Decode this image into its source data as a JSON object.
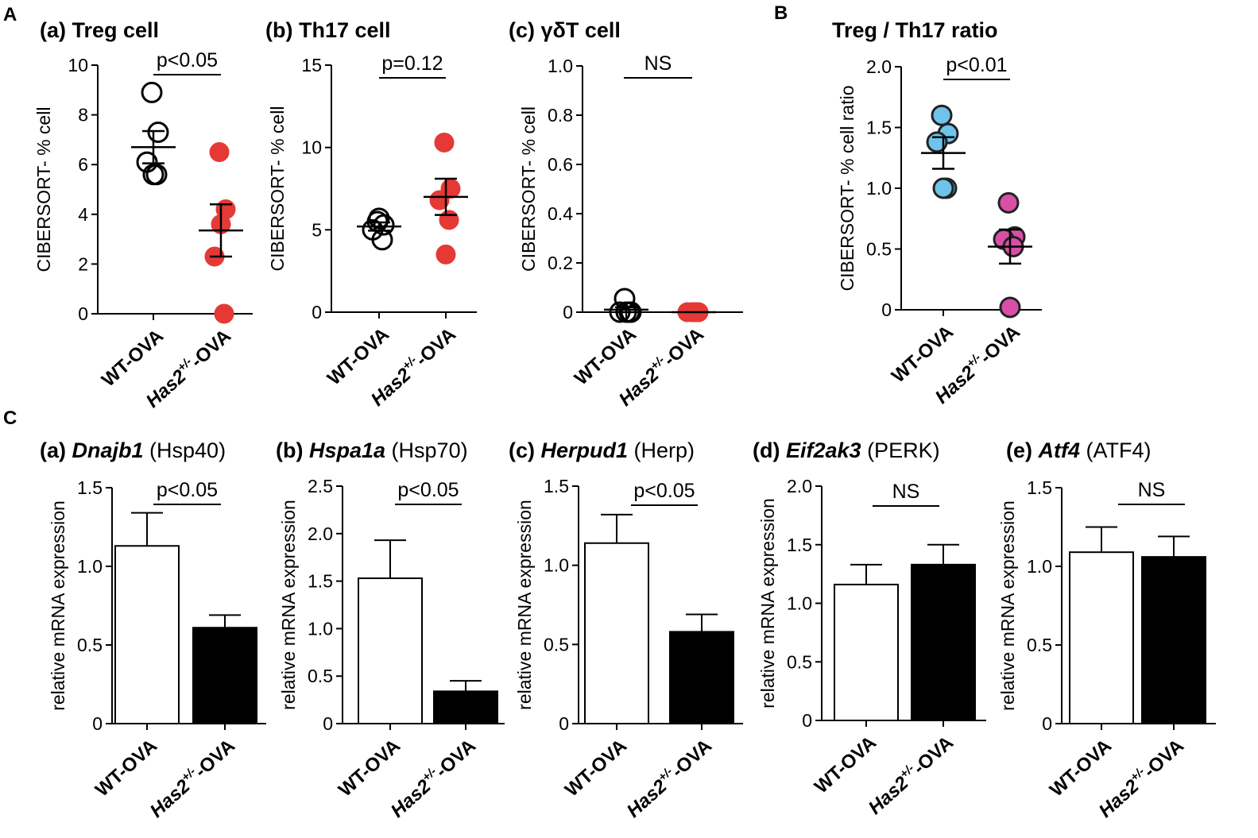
{
  "panel_letters": {
    "a": "A",
    "b": "B",
    "c": "C"
  },
  "colors": {
    "red_dot": "#e53935",
    "blue_dot": "#6dc3ea",
    "pink_dot": "#d94fa8",
    "bar_black": "#000000",
    "bar_white": "#ffffff"
  },
  "chart_data": [
    {
      "id": "A-a",
      "type": "scatter",
      "title_prefix": "(a) ",
      "title_gene": "",
      "title_rest": "Treg cell",
      "ylabel": "CIBERSORT- % cell",
      "ylim": [
        0,
        10
      ],
      "yticks": [
        "0",
        "2",
        "4",
        "6",
        "8",
        "10"
      ],
      "categories": [
        "WT-OVA",
        "Has2+/--OVA"
      ],
      "xlabels": [
        {
          "pre": "WT-OVA",
          "sup": "",
          "post": "",
          "italic_pre": false
        },
        {
          "pre": "Has2",
          "sup": "+/-",
          "post": "-OVA",
          "italic_pre": true
        }
      ],
      "series": [
        {
          "name": "WT-OVA",
          "style": "open",
          "color": "#000000",
          "values": [
            8.9,
            7.3,
            6.1,
            5.6,
            5.6
          ],
          "mean": 6.7,
          "sem": 0.65
        },
        {
          "name": "Has2+/--OVA",
          "style": "filled",
          "color": "#e53935",
          "values": [
            6.5,
            4.2,
            2.3,
            0.0,
            3.6
          ],
          "mean": 3.35,
          "sem": 1.05
        }
      ],
      "significance": "p<0.05"
    },
    {
      "id": "A-b",
      "type": "scatter",
      "title_prefix": "(b) ",
      "title_gene": "",
      "title_rest": "Th17 cell",
      "ylabel": "CIBERSORT- % cell",
      "ylim": [
        0,
        15
      ],
      "yticks": [
        "0",
        "5",
        "10",
        "15"
      ],
      "categories": [
        "WT-OVA",
        "Has2+/--OVA"
      ],
      "xlabels": [
        {
          "pre": "WT-OVA",
          "sup": "",
          "post": "",
          "italic_pre": false
        },
        {
          "pre": "Has2",
          "sup": "+/-",
          "post": "-OVA",
          "italic_pre": true
        }
      ],
      "series": [
        {
          "name": "WT-OVA",
          "style": "open",
          "color": "#000000",
          "values": [
            5.5,
            5.3,
            5.0,
            4.4,
            5.7
          ],
          "mean": 5.2,
          "sem": 0.25
        },
        {
          "name": "Has2+/--OVA",
          "style": "filled",
          "color": "#e53935",
          "values": [
            10.3,
            7.5,
            6.8,
            5.6,
            3.5
          ],
          "mean": 7.0,
          "sem": 1.1
        }
      ],
      "significance": "p=0.12"
    },
    {
      "id": "A-c",
      "type": "scatter",
      "title_prefix": "(c) ",
      "title_gene": "",
      "title_rest": "γδT cell",
      "ylabel": "CIBERSORT- % cell",
      "ylim": [
        0,
        1
      ],
      "yticks": [
        "0",
        "0.2",
        "0.4",
        "0.6",
        "0.8",
        "1.0"
      ],
      "categories": [
        "WT-OVA",
        "Has2+/--OVA"
      ],
      "xlabels": [
        {
          "pre": "WT-OVA",
          "sup": "",
          "post": "",
          "italic_pre": false
        },
        {
          "pre": "Has2",
          "sup": "+/-",
          "post": "-OVA",
          "italic_pre": true
        }
      ],
      "series": [
        {
          "name": "WT-OVA",
          "style": "open",
          "color": "#000000",
          "values": [
            0.055,
            0.0,
            0.0,
            0.0,
            0.0
          ],
          "mean": 0.01,
          "sem": 0.01
        },
        {
          "name": "Has2+/--OVA",
          "style": "filled",
          "color": "#e53935",
          "values": [
            0.0,
            0.0,
            0.0,
            0.0,
            0.0
          ],
          "mean": 0.0,
          "sem": 0.0
        }
      ],
      "significance": "NS"
    },
    {
      "id": "B",
      "type": "scatter",
      "title_prefix": "",
      "title_gene": "",
      "title_rest": "Treg / Th17 ratio",
      "ylabel": "CIBERSORT- % cell ratio",
      "ylim": [
        0,
        2
      ],
      "yticks": [
        "0",
        "0.5",
        "1.0",
        "1.5",
        "2.0"
      ],
      "categories": [
        "WT-OVA",
        "Has2+/--OVA"
      ],
      "xlabels": [
        {
          "pre": "WT-OVA",
          "sup": "",
          "post": "",
          "italic_pre": false
        },
        {
          "pre": "Has2",
          "sup": "+/-",
          "post": "-OVA",
          "italic_pre": true
        }
      ],
      "series": [
        {
          "name": "WT-OVA",
          "style": "filled",
          "color": "#6dc3ea",
          "values": [
            1.6,
            1.45,
            1.38,
            1.0,
            1.0
          ],
          "mean": 1.29,
          "sem": 0.13
        },
        {
          "name": "Has2+/--OVA",
          "style": "filled",
          "color": "#d94fa8",
          "values": [
            0.88,
            0.6,
            0.58,
            0.52,
            0.02
          ],
          "mean": 0.52,
          "sem": 0.14
        }
      ],
      "significance": "p<0.01"
    },
    {
      "id": "C-a",
      "type": "bar",
      "title_prefix": "(a) ",
      "title_gene": "Dnajb1",
      "title_rest": " (Hsp40)",
      "ylabel": "relative  mRNA expression",
      "ylim": [
        0,
        1.5
      ],
      "yticks": [
        "0",
        "0.5",
        "1.0",
        "1.5"
      ],
      "categories": [
        "WT-OVA",
        "Has2+/--OVA"
      ],
      "xlabels": [
        {
          "pre": "WT-OVA",
          "sup": "",
          "post": "",
          "italic_pre": false
        },
        {
          "pre": "Has2",
          "sup": "+/-",
          "post": "-OVA",
          "italic_pre": true
        }
      ],
      "series": [
        {
          "name": "WT-OVA",
          "fill": "#ffffff",
          "value": 1.13,
          "err": 0.21
        },
        {
          "name": "Has2+/--OVA",
          "fill": "#000000",
          "value": 0.61,
          "err": 0.08
        }
      ],
      "significance": "p<0.05"
    },
    {
      "id": "C-b",
      "type": "bar",
      "title_prefix": "(b) ",
      "title_gene": "Hspa1a",
      "title_rest": " (Hsp70)",
      "ylabel": "relative  mRNA expression",
      "ylim": [
        0,
        2.5
      ],
      "yticks": [
        "0",
        "0.5",
        "1.0",
        "1.5",
        "2.0",
        "2.5"
      ],
      "categories": [
        "WT-OVA",
        "Has2+/--OVA"
      ],
      "xlabels": [
        {
          "pre": "WT-OVA",
          "sup": "",
          "post": "",
          "italic_pre": false
        },
        {
          "pre": "Has2",
          "sup": "+/-",
          "post": "-OVA",
          "italic_pre": true
        }
      ],
      "series": [
        {
          "name": "WT-OVA",
          "fill": "#ffffff",
          "value": 1.53,
          "err": 0.4
        },
        {
          "name": "Has2+/--OVA",
          "fill": "#000000",
          "value": 0.34,
          "err": 0.11
        }
      ],
      "significance": "p<0.05"
    },
    {
      "id": "C-c",
      "type": "bar",
      "title_prefix": "(c) ",
      "title_gene": "Herpud1",
      "title_rest": " (Herp)",
      "ylabel": "relative  mRNA expression",
      "ylim": [
        0,
        1.5
      ],
      "yticks": [
        "0",
        "0.5",
        "1.0",
        "1.5"
      ],
      "categories": [
        "WT-OVA",
        "Has2+/--OVA"
      ],
      "xlabels": [
        {
          "pre": "WT-OVA",
          "sup": "",
          "post": "",
          "italic_pre": false
        },
        {
          "pre": "Has2",
          "sup": "+/-",
          "post": "-OVA",
          "italic_pre": true
        }
      ],
      "series": [
        {
          "name": "WT-OVA",
          "fill": "#ffffff",
          "value": 1.14,
          "err": 0.18
        },
        {
          "name": "Has2+/--OVA",
          "fill": "#000000",
          "value": 0.58,
          "err": 0.11
        }
      ],
      "significance": "p<0.05"
    },
    {
      "id": "C-d",
      "type": "bar",
      "title_prefix": "(d) ",
      "title_gene": "Eif2ak3",
      "title_rest": " (PERK)",
      "ylabel": "relative  mRNA expression",
      "ylim": [
        0,
        2.0
      ],
      "yticks": [
        "0",
        "0.5",
        "1.0",
        "1.5",
        "2.0"
      ],
      "categories": [
        "WT-OVA",
        "Has2+/--OVA"
      ],
      "xlabels": [
        {
          "pre": "WT-OVA",
          "sup": "",
          "post": "",
          "italic_pre": false
        },
        {
          "pre": "Has2",
          "sup": "+/-",
          "post": "-OVA",
          "italic_pre": true
        }
      ],
      "series": [
        {
          "name": "WT-OVA",
          "fill": "#ffffff",
          "value": 1.16,
          "err": 0.17
        },
        {
          "name": "Has2+/--OVA",
          "fill": "#000000",
          "value": 1.33,
          "err": 0.17
        }
      ],
      "significance": "NS"
    },
    {
      "id": "C-e",
      "type": "bar",
      "title_prefix": "(e) ",
      "title_gene": "Atf4",
      "title_rest": " (ATF4)",
      "ylabel": "relative  mRNA expression",
      "ylim": [
        0,
        1.5
      ],
      "yticks": [
        "0",
        "0.5",
        "1.0",
        "1.5"
      ],
      "categories": [
        "WT-OVA",
        "Has2+/--OVA"
      ],
      "xlabels": [
        {
          "pre": "WT-OVA",
          "sup": "",
          "post": "",
          "italic_pre": false
        },
        {
          "pre": "Has2",
          "sup": "+/-",
          "post": "-OVA",
          "italic_pre": true
        }
      ],
      "series": [
        {
          "name": "WT-OVA",
          "fill": "#ffffff",
          "value": 1.09,
          "err": 0.16
        },
        {
          "name": "Has2+/--OVA",
          "fill": "#000000",
          "value": 1.06,
          "err": 0.13
        }
      ],
      "significance": "NS"
    }
  ]
}
